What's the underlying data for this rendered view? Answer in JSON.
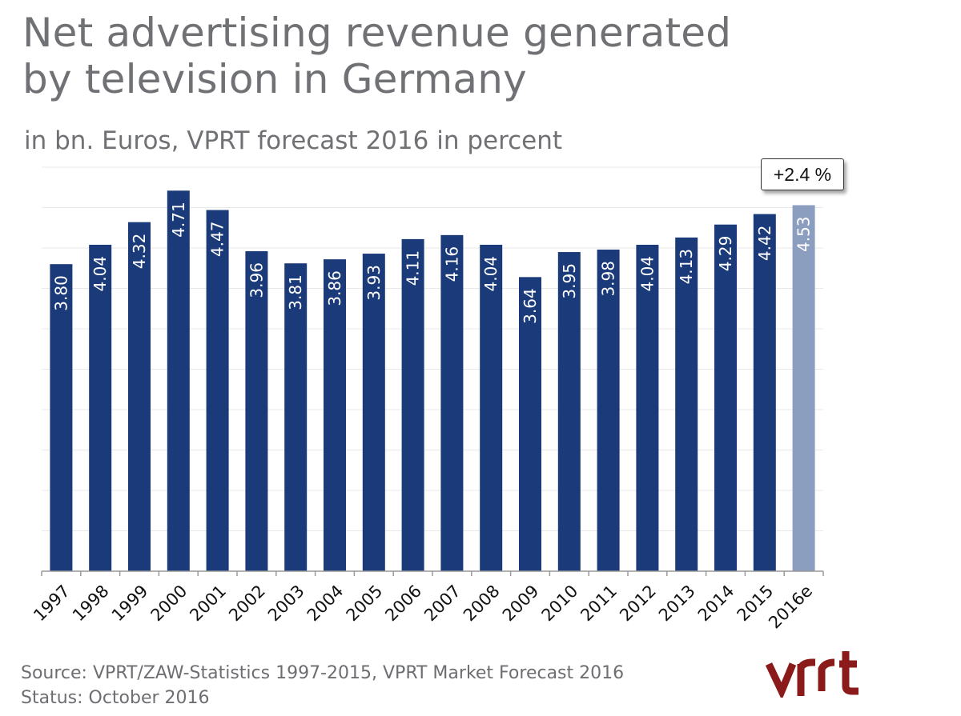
{
  "title_line1": "Net advertising revenue generated",
  "title_line2": "by television in Germany",
  "subtitle": "in bn. Euros, VPRT forecast 2016 in percent",
  "source_line1": "Source: VPRT/ZAW-Statistics 1997-2015, VPRT Market Forecast 2016",
  "source_line2": "Status:  October 2016",
  "logo_text": "vprt",
  "callout": "+2.4 %",
  "colors": {
    "bar": "#1b3a7a",
    "forecast_bar": "#8c9ec0",
    "grid": "#e8e8e8",
    "logo": "#8b1a1a"
  },
  "chart_data": {
    "type": "bar",
    "categories": [
      "1997",
      "1998",
      "1999",
      "2000",
      "2001",
      "2002",
      "2003",
      "2004",
      "2005",
      "2006",
      "2007",
      "2008",
      "2009",
      "2010",
      "2011",
      "2012",
      "2013",
      "2014",
      "2015",
      "2016e"
    ],
    "values": [
      3.8,
      4.04,
      4.32,
      4.71,
      4.47,
      3.96,
      3.81,
      3.86,
      3.93,
      4.11,
      4.16,
      4.04,
      3.64,
      3.95,
      3.98,
      4.04,
      4.13,
      4.29,
      4.42,
      4.53
    ],
    "value_labels": [
      "3.80",
      "4.04",
      "4.32",
      "4.71",
      "4.47",
      "3.96",
      "3.81",
      "3.86",
      "3.93",
      "4.11",
      "4.16",
      "4.04",
      "3.64",
      "3.95",
      "3.98",
      "4.04",
      "4.13",
      "4.29",
      "4.42",
      "4.53"
    ],
    "forecast_index": 19,
    "ylim": [
      0,
      5
    ],
    "grid": true,
    "title": "Net advertising revenue generated by television in Germany",
    "xlabel": "",
    "ylabel": ""
  }
}
